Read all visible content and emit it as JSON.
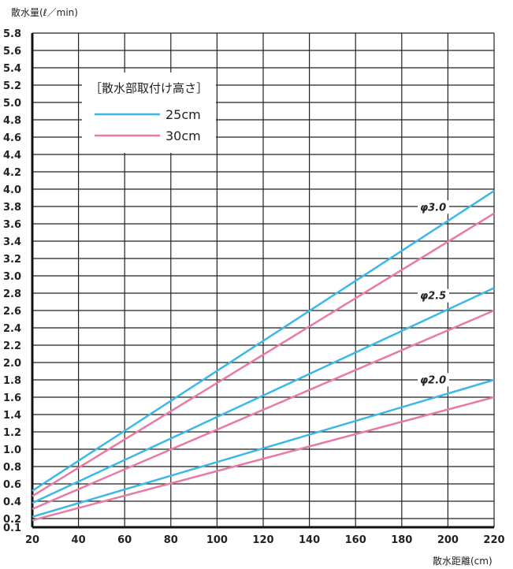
{
  "chart_data": {
    "type": "line",
    "title": "",
    "xlabel": "散水距離(cm)",
    "ylabel": "散水量(ℓ／min)",
    "xlim": [
      20,
      220
    ],
    "ylim": [
      0.1,
      5.8
    ],
    "grid": true,
    "x_ticks": [
      "20",
      "40",
      "60",
      "80",
      "100",
      "120",
      "140",
      "160",
      "180",
      "200",
      "220"
    ],
    "y_ticks": [
      "0.1",
      "0.2",
      "0.4",
      "0.6",
      "0.8",
      "1.0",
      "1.2",
      "1.4",
      "1.6",
      "1.8",
      "2.0",
      "2.2",
      "2.4",
      "2.6",
      "2.8",
      "3.0",
      "3.2",
      "3.4",
      "3.6",
      "3.8",
      "4.0",
      "4.2",
      "4.4",
      "4.6",
      "4.8",
      "5.0",
      "5.2",
      "5.4",
      "5.6",
      "5.8"
    ],
    "legend": {
      "title": "［散水部取付け高さ］",
      "position": "top-left",
      "entries": [
        {
          "label": "25cm",
          "color": "#3cb8e8"
        },
        {
          "label": "30cm",
          "color": "#e87aa6"
        }
      ]
    },
    "annotations": [
      "φ3.0",
      "φ2.5",
      "φ2.0"
    ],
    "series": [
      {
        "group": "φ3.0",
        "height": "25cm",
        "color": "#3cb8e8",
        "x": [
          20,
          220
        ],
        "y": [
          0.52,
          3.98
        ]
      },
      {
        "group": "φ3.0",
        "height": "30cm",
        "color": "#e87aa6",
        "x": [
          20,
          220
        ],
        "y": [
          0.46,
          3.72
        ]
      },
      {
        "group": "φ2.5",
        "height": "25cm",
        "color": "#3cb8e8",
        "x": [
          20,
          220
        ],
        "y": [
          0.38,
          2.86
        ]
      },
      {
        "group": "φ2.5",
        "height": "30cm",
        "color": "#e87aa6",
        "x": [
          20,
          220
        ],
        "y": [
          0.31,
          2.6
        ]
      },
      {
        "group": "φ2.0",
        "height": "25cm",
        "color": "#3cb8e8",
        "x": [
          20,
          220
        ],
        "y": [
          0.22,
          1.8
        ]
      },
      {
        "group": "φ2.0",
        "height": "30cm",
        "color": "#e87aa6",
        "x": [
          20,
          220
        ],
        "y": [
          0.18,
          1.6
        ]
      }
    ]
  }
}
